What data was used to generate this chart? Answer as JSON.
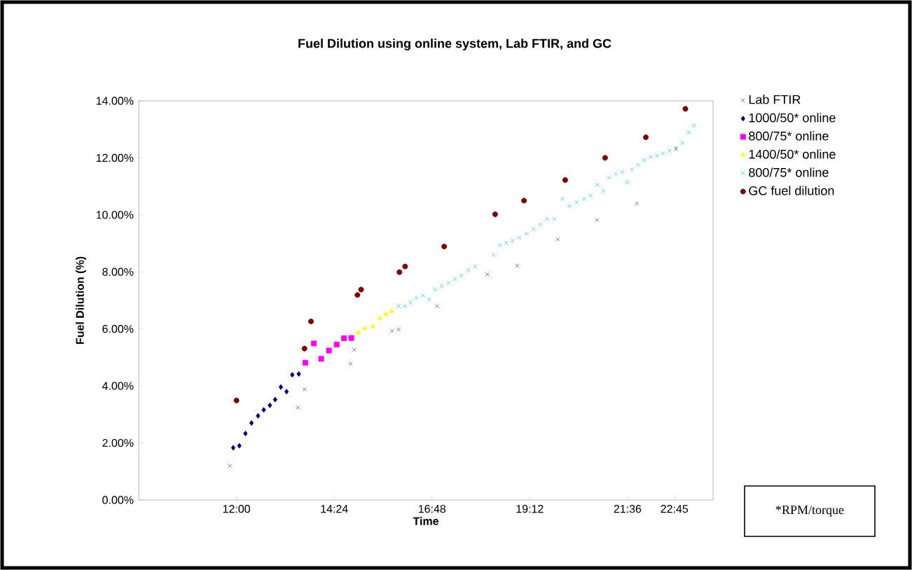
{
  "chart_data": {
    "type": "scatter",
    "title": "Fuel Dilution using online system, Lab FTIR, and GC",
    "xlabel": "Time",
    "ylabel": "Fuel Dilution (%)",
    "xlim": [
      9.6,
      23.7
    ],
    "ylim": [
      0,
      14
    ],
    "xticks": [
      {
        "value": 12,
        "label": "12:00"
      },
      {
        "value": 14.4,
        "label": "14:24"
      },
      {
        "value": 16.8,
        "label": "16:48"
      },
      {
        "value": 19.2,
        "label": "19:12"
      },
      {
        "value": 21.6,
        "label": "21:36"
      },
      {
        "value": 22.75,
        "label": "22:45"
      }
    ],
    "yticks": [
      {
        "value": 0,
        "label": "0.00%"
      },
      {
        "value": 2,
        "label": "2.00%"
      },
      {
        "value": 4,
        "label": "4.00%"
      },
      {
        "value": 6,
        "label": "6.00%"
      },
      {
        "value": 8,
        "label": "8.00%"
      },
      {
        "value": 10,
        "label": "10.00%"
      },
      {
        "value": 12,
        "label": "12.00%"
      },
      {
        "value": 14,
        "label": "14.00%"
      }
    ],
    "grid": false,
    "legend": "right",
    "annotations": [
      "*RPM/torque"
    ],
    "series": [
      {
        "name": "Lab FTIR",
        "color": "#993399",
        "marker": "cross",
        "x": [
          11.84,
          13.51,
          13.67,
          14.8,
          14.89,
          15.82,
          15.98,
          16.93,
          18.16,
          18.89,
          19.89,
          20.85,
          21.83,
          22.79
        ],
        "values": [
          1.2,
          3.24,
          3.88,
          4.78,
          5.27,
          5.93,
          5.98,
          6.8,
          7.91,
          8.22,
          9.14,
          9.82,
          10.4,
          12.31
        ]
      },
      {
        "name": "1000/50* online",
        "color": "#000080",
        "marker": "diamond",
        "x": [
          11.92,
          12.07,
          12.22,
          12.37,
          12.53,
          12.67,
          12.82,
          12.95,
          13.09,
          13.23,
          13.37,
          13.53
        ],
        "values": [
          1.83,
          1.9,
          2.33,
          2.7,
          2.95,
          3.16,
          3.32,
          3.52,
          3.96,
          3.8,
          4.39,
          4.42
        ]
      },
      {
        "name": "800/75* online",
        "color": "#ff00ff",
        "marker": "square",
        "x": [
          13.69,
          13.9,
          14.08,
          14.27,
          14.46,
          14.64,
          14.82
        ],
        "values": [
          4.81,
          5.49,
          4.95,
          5.24,
          5.45,
          5.67,
          5.68
        ]
      },
      {
        "name": "1400/50* online",
        "color": "#ffff00",
        "marker": "triangle",
        "x": [
          14.99,
          15.15,
          15.35,
          15.52,
          15.67,
          15.81
        ],
        "values": [
          5.86,
          6.01,
          6.08,
          6.37,
          6.52,
          6.62
        ]
      },
      {
        "name": "800/75* online",
        "color": "#33ccff",
        "marker": "cross",
        "x": [
          15.98,
          16.13,
          16.27,
          16.42,
          16.58,
          16.73,
          16.88,
          17.04,
          17.2,
          17.36,
          17.52,
          17.69,
          17.86,
          18.31,
          18.47,
          18.63,
          18.77,
          18.95,
          19.12,
          19.29,
          19.46,
          19.63,
          19.8,
          20.0,
          20.18,
          20.35,
          20.53,
          20.69,
          20.86,
          21.01,
          21.15,
          21.31,
          21.47,
          21.59,
          21.71,
          21.86,
          22.01,
          22.17,
          22.32,
          22.47,
          22.63,
          22.79,
          22.95,
          23.1,
          23.23
        ],
        "values": [
          6.8,
          6.8,
          6.93,
          7.09,
          7.17,
          7.04,
          7.37,
          7.5,
          7.61,
          7.74,
          7.87,
          8.06,
          8.19,
          8.6,
          8.93,
          9.01,
          9.09,
          9.2,
          9.33,
          9.5,
          9.66,
          9.86,
          9.86,
          10.56,
          10.31,
          10.44,
          10.56,
          10.67,
          11.05,
          10.84,
          11.3,
          11.43,
          11.5,
          11.14,
          11.59,
          11.76,
          11.92,
          12.03,
          12.07,
          12.15,
          12.25,
          12.36,
          12.52,
          12.89,
          13.13
        ]
      },
      {
        "name": "GC fuel dilution",
        "color": "#800000",
        "marker": "circle",
        "x": [
          12.0,
          13.67,
          13.83,
          14.97,
          15.06,
          16.0,
          16.14,
          17.1,
          18.35,
          19.06,
          20.07,
          21.05,
          22.05,
          23.02
        ],
        "values": [
          3.49,
          5.31,
          6.26,
          7.19,
          7.38,
          7.99,
          8.19,
          8.89,
          10.02,
          10.5,
          11.22,
          12.0,
          12.72,
          13.72
        ]
      }
    ]
  }
}
